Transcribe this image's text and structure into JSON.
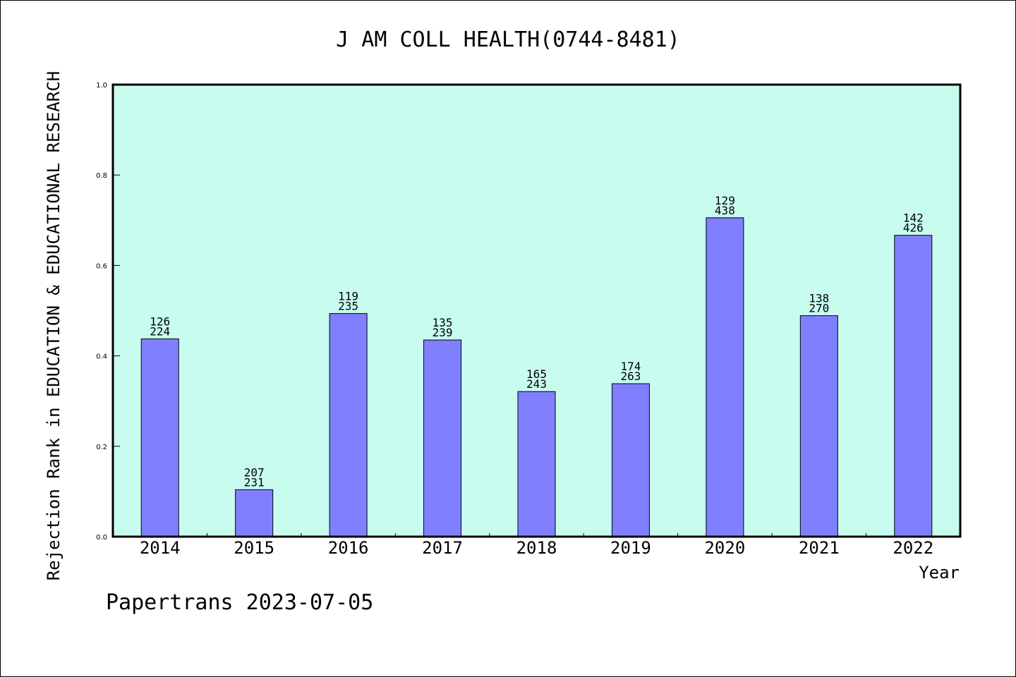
{
  "chart_data": {
    "type": "bar",
    "title": "J AM COLL HEALTH(0744-8481)",
    "xlabel": "Year",
    "ylabel": "Rejection Rank in EDUCATION & EDUCATIONAL RESEARCH",
    "ylim": [
      0,
      1.0
    ],
    "yticks": [
      "0.0",
      "0.2",
      "0.4",
      "0.6",
      "0.8",
      "1.0"
    ],
    "categories": [
      "2014",
      "2015",
      "2016",
      "2017",
      "2018",
      "2019",
      "2020",
      "2021",
      "2022"
    ],
    "values": [
      0.4375,
      0.1039,
      0.4936,
      0.4351,
      0.321,
      0.3384,
      0.7055,
      0.4889,
      0.6667
    ],
    "labels_top": [
      "126",
      "207",
      "119",
      "135",
      "165",
      "174",
      "129",
      "138",
      "142"
    ],
    "labels_bottom": [
      "224",
      "231",
      "235",
      "239",
      "243",
      "263",
      "438",
      "270",
      "426"
    ],
    "plot_bg": "#c8fcee",
    "bar_color": "#8080ff",
    "grid": false
  },
  "footer": "Papertrans 2023-07-05"
}
